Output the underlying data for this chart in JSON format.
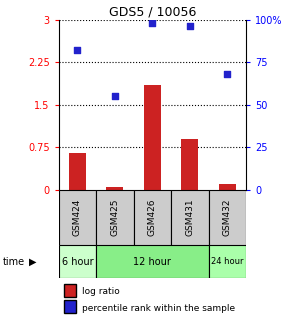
{
  "title": "GDS5 / 10056",
  "samples": [
    "GSM424",
    "GSM425",
    "GSM426",
    "GSM431",
    "GSM432"
  ],
  "log_ratio": [
    0.65,
    0.05,
    1.85,
    0.9,
    0.1
  ],
  "percentile_rank": [
    82,
    55,
    98,
    96,
    68
  ],
  "ylim_left": [
    0,
    3
  ],
  "ylim_right": [
    0,
    100
  ],
  "yticks_left": [
    0,
    0.75,
    1.5,
    2.25,
    3
  ],
  "yticks_right": [
    0,
    25,
    50,
    75,
    100
  ],
  "ytick_labels_left": [
    "0",
    "0.75",
    "1.5",
    "2.25",
    "3"
  ],
  "ytick_labels_right": [
    "0",
    "25",
    "50",
    "75",
    "100%"
  ],
  "bar_color": "#cc2222",
  "scatter_color": "#2222cc",
  "time_groups": [
    {
      "label": "6 hour",
      "samples": [
        "GSM424"
      ],
      "color": "#ccffcc"
    },
    {
      "label": "12 hour",
      "samples": [
        "GSM425",
        "GSM426",
        "GSM431"
      ],
      "color": "#88ee88"
    },
    {
      "label": "24 hour",
      "samples": [
        "GSM432"
      ],
      "color": "#aaffaa"
    }
  ],
  "legend_bar_label": "log ratio",
  "legend_scatter_label": "percentile rank within the sample",
  "time_label": "time",
  "background_color": "#ffffff",
  "sample_box_color": "#cccccc"
}
